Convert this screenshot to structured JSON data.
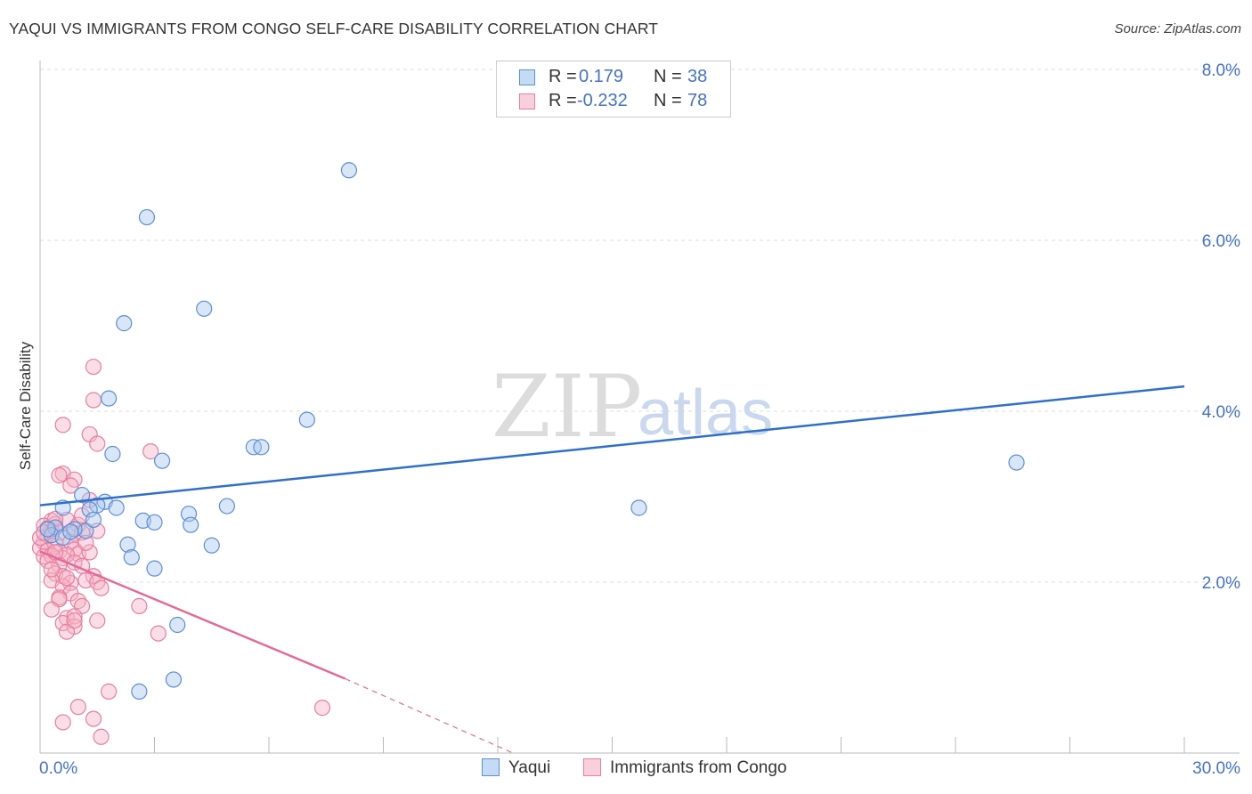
{
  "title": "YAQUI VS IMMIGRANTS FROM CONGO SELF-CARE DISABILITY CORRELATION CHART",
  "source": "Source: ZipAtlas.com",
  "watermark": {
    "zip": "ZIP",
    "atlas": "atlas"
  },
  "legend": {
    "rows": [
      {
        "r_label": "R =",
        "r_value": "0.179",
        "n_label": "N =",
        "n_value": "38"
      },
      {
        "r_label": "R =",
        "r_value": "-0.232",
        "n_label": "N =",
        "n_value": "78"
      }
    ]
  },
  "bottom_legend": {
    "series1": "Yaqui",
    "series2": "Immigrants from Congo"
  },
  "colors": {
    "blue_fill": "#a9c8ee",
    "blue_stroke": "#5b8fd6",
    "blue_line": "#2f6fcc",
    "pink_fill": "#f5b3c8",
    "pink_stroke": "#e87ea1",
    "pink_line": "#e36b96",
    "tick_text": "#4472c4",
    "grid": "#dddddd"
  },
  "chart_data": {
    "type": "scatter",
    "title": "YAQUI VS IMMIGRANTS FROM CONGO SELF-CARE DISABILITY CORRELATION CHART",
    "xlabel": "",
    "ylabel": "Self-Care Disability",
    "xlim": [
      0,
      30
    ],
    "ylim": [
      0,
      8
    ],
    "x_tick_labels": [
      "0.0%",
      "30.0%"
    ],
    "y_ticks": [
      {
        "value": 2,
        "label": "2.0%"
      },
      {
        "value": 4,
        "label": "4.0%"
      },
      {
        "value": 6,
        "label": "6.0%"
      },
      {
        "value": 8,
        "label": "8.0%"
      }
    ],
    "series": [
      {
        "name": "Yaqui",
        "color": "blue",
        "points": [
          [
            8.1,
            6.82
          ],
          [
            2.8,
            6.27
          ],
          [
            4.3,
            5.2
          ],
          [
            2.2,
            5.03
          ],
          [
            1.8,
            4.15
          ],
          [
            7.0,
            3.9
          ],
          [
            1.9,
            3.5
          ],
          [
            5.6,
            3.58
          ],
          [
            5.8,
            3.58
          ],
          [
            3.2,
            3.42
          ],
          [
            1.1,
            3.02
          ],
          [
            1.7,
            2.94
          ],
          [
            1.5,
            2.9
          ],
          [
            2.0,
            2.87
          ],
          [
            1.3,
            2.85
          ],
          [
            0.6,
            2.87
          ],
          [
            1.2,
            2.6
          ],
          [
            0.4,
            2.64
          ],
          [
            0.9,
            2.62
          ],
          [
            0.3,
            2.55
          ],
          [
            0.6,
            2.52
          ],
          [
            1.4,
            2.73
          ],
          [
            2.7,
            2.72
          ],
          [
            3.0,
            2.7
          ],
          [
            3.9,
            2.8
          ],
          [
            4.9,
            2.89
          ],
          [
            3.95,
            2.67
          ],
          [
            2.3,
            2.44
          ],
          [
            4.5,
            2.43
          ],
          [
            2.4,
            2.29
          ],
          [
            3.0,
            2.16
          ],
          [
            3.6,
            1.5
          ],
          [
            2.6,
            0.72
          ],
          [
            3.5,
            0.86
          ],
          [
            15.7,
            2.87
          ],
          [
            25.6,
            3.4
          ],
          [
            0.8,
            2.59
          ],
          [
            0.2,
            2.62
          ]
        ]
      },
      {
        "name": "Immigrants from Congo",
        "color": "pink",
        "points": [
          [
            1.4,
            4.52
          ],
          [
            1.4,
            4.13
          ],
          [
            0.6,
            3.84
          ],
          [
            1.3,
            3.73
          ],
          [
            1.5,
            3.62
          ],
          [
            2.9,
            3.53
          ],
          [
            0.6,
            3.27
          ],
          [
            0.5,
            3.25
          ],
          [
            0.9,
            3.2
          ],
          [
            0.8,
            3.13
          ],
          [
            1.3,
            2.96
          ],
          [
            0.3,
            2.72
          ],
          [
            0.4,
            2.68
          ],
          [
            0.7,
            2.73
          ],
          [
            1.0,
            2.67
          ],
          [
            0.1,
            2.66
          ],
          [
            0.2,
            2.55
          ],
          [
            0.3,
            2.6
          ],
          [
            0.5,
            2.58
          ],
          [
            0.9,
            2.57
          ],
          [
            1.1,
            2.58
          ],
          [
            0.1,
            2.47
          ],
          [
            0.4,
            2.45
          ],
          [
            0.8,
            2.47
          ],
          [
            0.0,
            2.4
          ],
          [
            0.2,
            2.37
          ],
          [
            0.5,
            2.36
          ],
          [
            0.9,
            2.38
          ],
          [
            1.0,
            2.33
          ],
          [
            0.1,
            2.3
          ],
          [
            0.3,
            2.31
          ],
          [
            0.6,
            2.28
          ],
          [
            0.7,
            2.32
          ],
          [
            1.3,
            2.35
          ],
          [
            0.2,
            2.25
          ],
          [
            0.5,
            2.2
          ],
          [
            0.9,
            2.23
          ],
          [
            1.1,
            2.19
          ],
          [
            0.4,
            2.1
          ],
          [
            0.6,
            2.07
          ],
          [
            1.4,
            2.07
          ],
          [
            0.3,
            2.02
          ],
          [
            0.8,
            1.99
          ],
          [
            1.2,
            2.02
          ],
          [
            1.5,
            2.0
          ],
          [
            0.6,
            1.95
          ],
          [
            1.6,
            1.93
          ],
          [
            0.8,
            1.87
          ],
          [
            0.5,
            1.82
          ],
          [
            1.0,
            1.78
          ],
          [
            1.1,
            1.72
          ],
          [
            0.5,
            1.8
          ],
          [
            0.3,
            1.68
          ],
          [
            2.6,
            1.72
          ],
          [
            0.7,
            1.58
          ],
          [
            0.9,
            1.6
          ],
          [
            0.6,
            1.52
          ],
          [
            1.5,
            1.55
          ],
          [
            0.9,
            1.48
          ],
          [
            0.7,
            1.42
          ],
          [
            3.1,
            1.4
          ],
          [
            1.8,
            0.72
          ],
          [
            7.4,
            0.53
          ],
          [
            1.0,
            0.54
          ],
          [
            1.4,
            0.4
          ],
          [
            0.6,
            0.36
          ],
          [
            1.6,
            0.19
          ],
          [
            0.2,
            2.63
          ],
          [
            0.0,
            2.52
          ],
          [
            0.1,
            2.58
          ],
          [
            0.4,
            2.35
          ],
          [
            0.7,
            2.05
          ],
          [
            1.2,
            2.46
          ],
          [
            1.5,
            2.6
          ],
          [
            0.3,
            2.15
          ],
          [
            0.9,
            1.55
          ],
          [
            0.4,
            2.74
          ],
          [
            1.1,
            2.78
          ]
        ]
      }
    ],
    "trend_lines": [
      {
        "series": "Yaqui",
        "x": [
          0,
          30
        ],
        "y": [
          2.9,
          4.29
        ],
        "style": "solid"
      },
      {
        "series": "Immigrants from Congo",
        "x": [
          0,
          8
        ],
        "y": [
          2.36,
          0.87
        ],
        "style": "solid"
      },
      {
        "series": "Immigrants from Congo",
        "x": [
          8,
          12.4
        ],
        "y": [
          0.87,
          0.0
        ],
        "style": "dashed"
      }
    ]
  }
}
